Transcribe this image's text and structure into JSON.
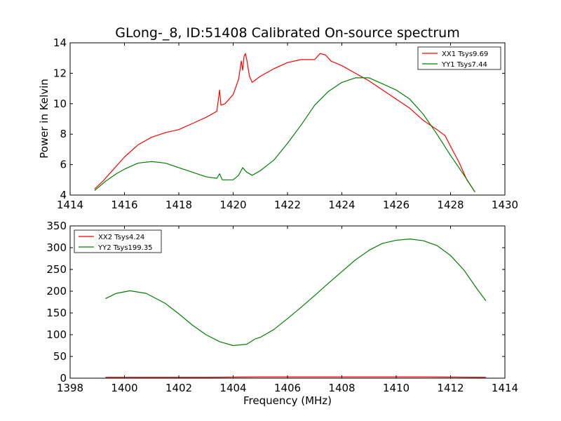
{
  "title": "GLong-_8, ID:51408 Calibrated On-source spectrum",
  "colors": {
    "red": "#ff0000",
    "green": "#008000"
  },
  "chart_data": [
    {
      "type": "line",
      "xlabel": "",
      "ylabel": "Power in Kelvin",
      "xlim": [
        1414,
        1430
      ],
      "ylim": [
        4,
        14
      ],
      "xticks": [
        "1414",
        "1416",
        "1418",
        "1420",
        "1422",
        "1424",
        "1426",
        "1428",
        "1430"
      ],
      "yticks": [
        "4",
        "6",
        "8",
        "10",
        "12",
        "14"
      ],
      "legend_position": "top-right",
      "series": [
        {
          "name": "XX1 Tsys9.69",
          "color": "#ff0000",
          "x": [
            1414.9,
            1415.2,
            1415.5,
            1416.0,
            1416.5,
            1417.0,
            1417.5,
            1418.0,
            1418.5,
            1419.0,
            1419.4,
            1419.5,
            1419.55,
            1419.7,
            1420.0,
            1420.2,
            1420.3,
            1420.35,
            1420.4,
            1420.45,
            1420.5,
            1420.6,
            1420.7,
            1421.0,
            1421.5,
            1422.0,
            1422.5,
            1423.0,
            1423.2,
            1423.4,
            1423.6,
            1424.0,
            1424.5,
            1425.0,
            1425.5,
            1426.0,
            1426.5,
            1427.0,
            1427.5,
            1427.8,
            1428.0,
            1428.3,
            1428.6,
            1428.9
          ],
          "y": [
            4.4,
            4.9,
            5.5,
            6.5,
            7.3,
            7.8,
            8.1,
            8.3,
            8.7,
            9.1,
            9.5,
            10.9,
            9.9,
            10.0,
            10.6,
            11.6,
            12.8,
            12.2,
            13.1,
            13.3,
            12.9,
            11.8,
            11.4,
            11.8,
            12.3,
            12.7,
            12.9,
            12.9,
            13.3,
            13.2,
            12.8,
            12.5,
            12.0,
            11.5,
            10.9,
            10.3,
            9.7,
            8.9,
            8.3,
            7.9,
            7.2,
            6.2,
            5.0,
            4.2
          ]
        },
        {
          "name": "YY1 Tsys7.44",
          "color": "#008000",
          "x": [
            1414.9,
            1415.3,
            1415.7,
            1416.0,
            1416.5,
            1417.0,
            1417.5,
            1418.0,
            1418.5,
            1419.0,
            1419.4,
            1419.5,
            1419.6,
            1420.0,
            1420.2,
            1420.35,
            1420.5,
            1420.7,
            1421.0,
            1421.5,
            1422.0,
            1422.5,
            1423.0,
            1423.5,
            1424.0,
            1424.5,
            1425.0,
            1425.5,
            1426.0,
            1426.5,
            1427.0,
            1427.5,
            1428.0,
            1428.5,
            1428.9
          ],
          "y": [
            4.3,
            4.9,
            5.4,
            5.7,
            6.1,
            6.2,
            6.1,
            5.8,
            5.5,
            5.2,
            5.1,
            5.4,
            5.0,
            5.0,
            5.3,
            5.8,
            5.5,
            5.3,
            5.6,
            6.3,
            7.4,
            8.6,
            9.9,
            10.8,
            11.4,
            11.7,
            11.7,
            11.3,
            10.9,
            10.3,
            9.3,
            8.0,
            6.6,
            5.3,
            4.2
          ]
        }
      ]
    },
    {
      "type": "line",
      "xlabel": "Frequency (MHz)",
      "ylabel": "",
      "xlim": [
        1398,
        1414
      ],
      "ylim": [
        0,
        350
      ],
      "xticks": [
        "1398",
        "1400",
        "1402",
        "1404",
        "1406",
        "1408",
        "1410",
        "1412",
        "1414"
      ],
      "yticks": [
        "0",
        "50",
        "100",
        "150",
        "200",
        "250",
        "300",
        "350"
      ],
      "legend_position": "top-left",
      "series": [
        {
          "name": "XX2 Tsys4.24",
          "color": "#ff0000",
          "x": [
            1399.3,
            1401.0,
            1403.0,
            1405.0,
            1407.0,
            1409.0,
            1411.0,
            1413.3
          ],
          "y": [
            2,
            2,
            2,
            3,
            3,
            3,
            3,
            2
          ]
        },
        {
          "name": "YY2 Tsys199.35",
          "color": "#008000",
          "x": [
            1399.3,
            1399.7,
            1400.2,
            1400.8,
            1401.5,
            1402.0,
            1402.5,
            1403.0,
            1403.5,
            1404.0,
            1404.5,
            1404.8,
            1405.0,
            1405.5,
            1406.0,
            1406.5,
            1407.0,
            1407.5,
            1408.0,
            1408.5,
            1409.0,
            1409.5,
            1410.0,
            1410.5,
            1411.0,
            1411.5,
            1412.0,
            1412.5,
            1413.0,
            1413.3
          ],
          "y": [
            183,
            195,
            201,
            195,
            172,
            148,
            122,
            100,
            84,
            75,
            78,
            90,
            94,
            112,
            137,
            163,
            190,
            218,
            245,
            272,
            294,
            310,
            317,
            320,
            316,
            305,
            282,
            248,
            203,
            178
          ]
        }
      ]
    }
  ]
}
